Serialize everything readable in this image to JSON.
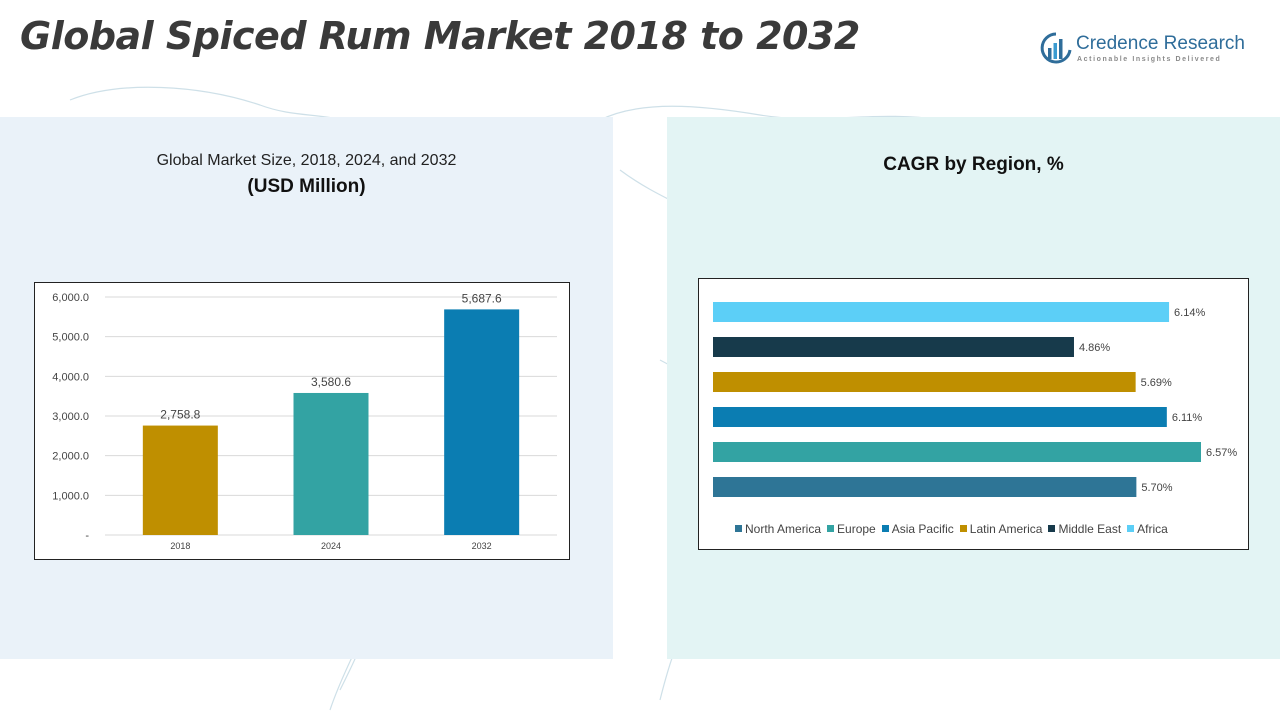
{
  "title": "Global Spiced Rum Market 2018 to 2032",
  "logo": {
    "name": "Credence Research",
    "tagline": "Actionable Insights Delivered",
    "icon": "credence-logo-icon",
    "color": "#2f6d9a"
  },
  "left_panel": {
    "title": "Global Market Size, 2018, 2024, and 2032",
    "subtitle": "(USD Million)"
  },
  "right_panel": {
    "title": "CAGR by Region, %"
  },
  "chart_data": [
    {
      "type": "bar",
      "orientation": "vertical",
      "categories": [
        "2018",
        "2024",
        "2032"
      ],
      "values": [
        2758.8,
        3580.6,
        5687.6
      ],
      "value_labels": [
        "2,758.8",
        "3,580.6",
        "5,687.6"
      ],
      "colors": [
        "#bf8f00",
        "#33a3a3",
        "#0b7db2"
      ],
      "ylim": [
        0,
        6000
      ],
      "yticks": [
        0,
        1000,
        2000,
        3000,
        4000,
        5000,
        6000
      ],
      "ytick_labels": [
        "-",
        "1,000.0",
        "2,000.0",
        "3,000.0",
        "4,000.0",
        "5,000.0",
        "6,000.0"
      ],
      "grid": true
    },
    {
      "type": "bar",
      "orientation": "horizontal",
      "categories": [
        "North America",
        "Europe",
        "Asia Pacific",
        "Latin America",
        "Middle East",
        "Africa"
      ],
      "values": [
        5.7,
        6.57,
        6.11,
        5.69,
        4.86,
        6.14
      ],
      "value_labels": [
        "5.70%",
        "6.57%",
        "6.11%",
        "5.69%",
        "4.86%",
        "6.14%"
      ],
      "colors": [
        "#2e7596",
        "#33a3a3",
        "#0b7db2",
        "#bf8f00",
        "#173a4b",
        "#5ccff7"
      ],
      "xlim": [
        0,
        6.57
      ],
      "legend_position": "bottom",
      "grid": false
    }
  ]
}
